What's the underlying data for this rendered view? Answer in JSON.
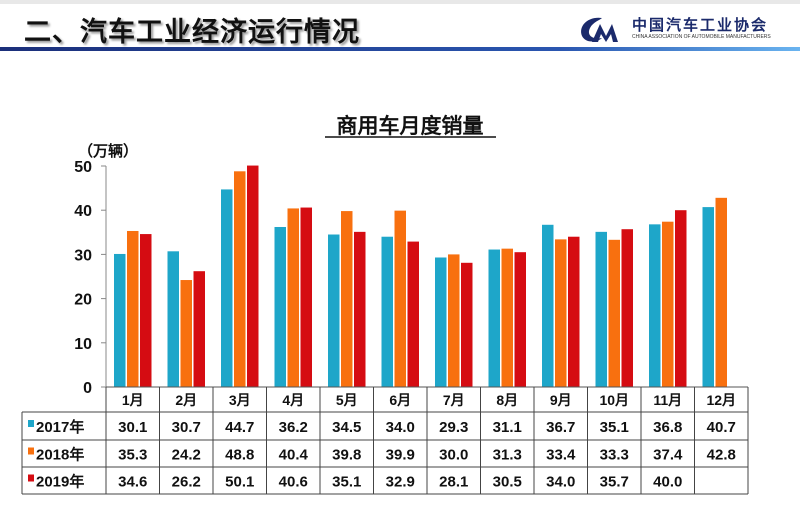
{
  "header": {
    "title": "二、汽车工业经济运行情况",
    "logo_cn": "中国汽车工业协会",
    "logo_en": "CHINA ASSOCIATION OF AUTOMOBILE MANUFACTURERS"
  },
  "chart_data": {
    "type": "bar",
    "title": "商用车月度销量",
    "ylabel": "（万辆）",
    "ylim": [
      0,
      50
    ],
    "yticks": [
      0,
      10,
      20,
      30,
      40,
      50
    ],
    "grid": false,
    "legend": "table",
    "categories": [
      "1月",
      "2月",
      "3月",
      "4月",
      "5月",
      "6月",
      "7月",
      "8月",
      "9月",
      "10月",
      "11月",
      "12月"
    ],
    "series": [
      {
        "name": "2017年",
        "color": "#1ea6c9",
        "values": [
          30.1,
          30.7,
          44.7,
          36.2,
          34.5,
          34.0,
          29.3,
          31.1,
          36.7,
          35.1,
          36.8,
          40.7
        ]
      },
      {
        "name": "2018年",
        "color": "#f8700f",
        "values": [
          35.3,
          24.2,
          48.8,
          40.4,
          39.8,
          39.9,
          30.0,
          31.3,
          33.4,
          33.3,
          37.4,
          42.8
        ]
      },
      {
        "name": "2019年",
        "color": "#d50c12",
        "values": [
          34.6,
          26.2,
          50.1,
          40.6,
          35.1,
          32.9,
          28.1,
          30.5,
          34.0,
          35.7,
          40.0,
          null
        ]
      }
    ]
  }
}
